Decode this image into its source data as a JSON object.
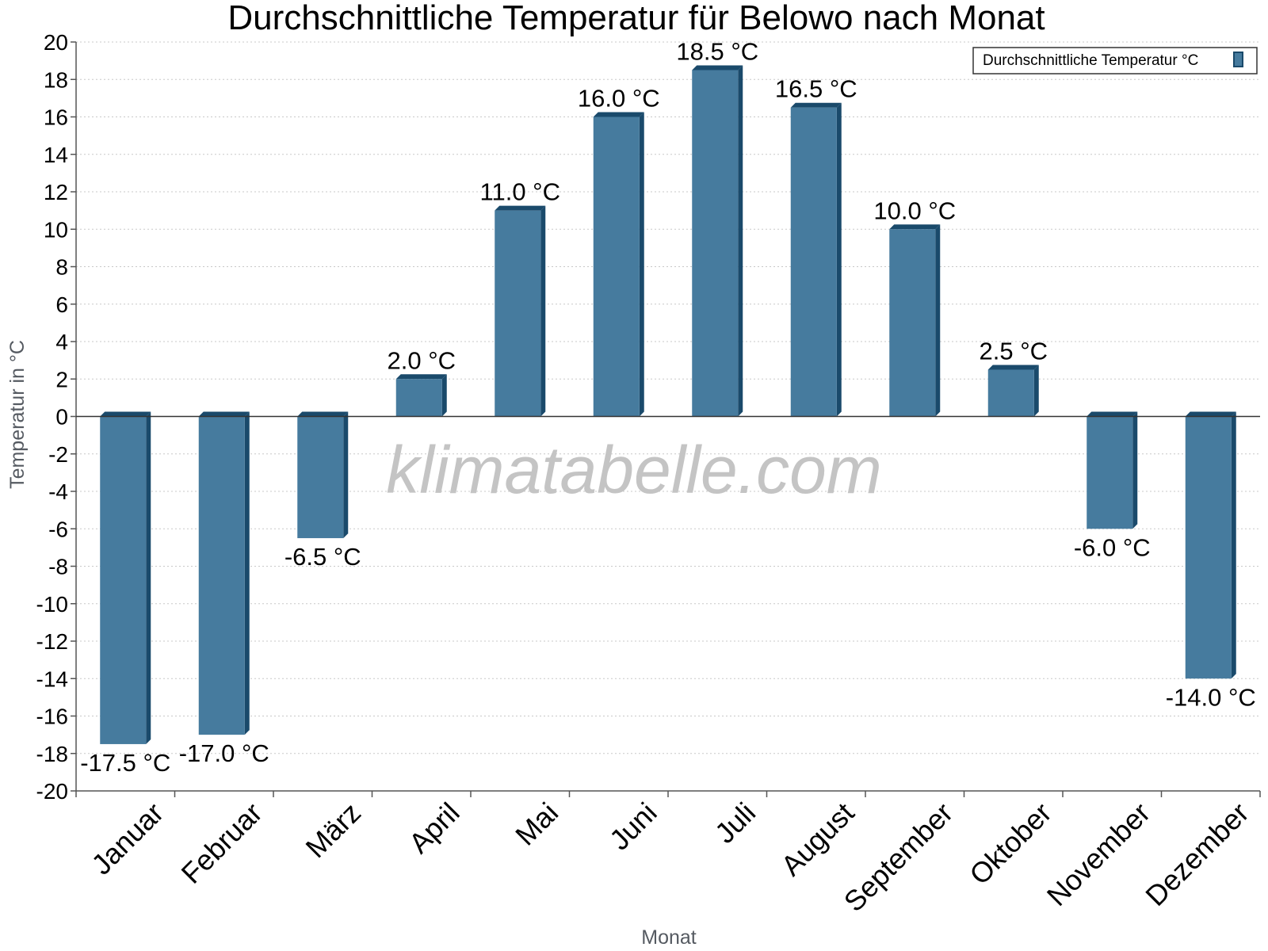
{
  "chart_data": {
    "type": "bar",
    "title": "Durchschnittliche Temperatur für Belowo nach Monat",
    "xlabel": "Monat",
    "ylabel": "Temperatur in °C",
    "categories": [
      "Januar",
      "Februar",
      "März",
      "April",
      "Mai",
      "Juni",
      "Juli",
      "August",
      "September",
      "Oktober",
      "November",
      "Dezember"
    ],
    "series": [
      {
        "name": "Durchschnittliche Temperatur °C",
        "values": [
          -17.5,
          -17.0,
          -6.5,
          2.0,
          11.0,
          16.0,
          18.5,
          16.5,
          10.0,
          2.5,
          -6.0,
          -14.0
        ],
        "labels": [
          "-17.5 °C",
          "-17.0 °C",
          "-6.5 °C",
          "2.0 °C",
          "11.0 °C",
          "16.0 °C",
          "18.5 °C",
          "16.5 °C",
          "10.0 °C",
          "2.5 °C",
          "-6.0 °C",
          "-14.0 °C"
        ]
      }
    ],
    "ylim": [
      -20,
      20
    ],
    "ytick_step": 2,
    "grid": true,
    "legend_position": "top-right",
    "watermark": "klimatabelle.com",
    "colors": {
      "bar_face": "#467b9e",
      "bar_side": "#1a4a6b",
      "grid": "#c8c8c8",
      "axis": "#555555"
    }
  }
}
